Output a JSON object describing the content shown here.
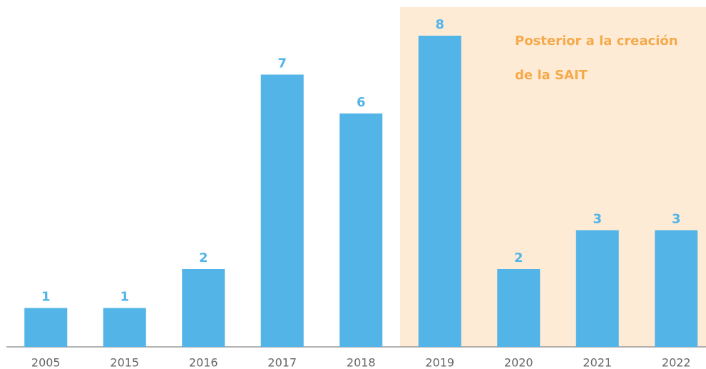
{
  "chart_data": {
    "type": "bar",
    "categories": [
      "2005",
      "2015",
      "2016",
      "2017",
      "2018",
      "2019",
      "2020",
      "2021",
      "2022"
    ],
    "values": [
      1,
      1,
      2,
      7,
      6,
      8,
      2,
      3,
      3
    ],
    "color": "#52b4e7",
    "annotation": [
      "Posterior a la creación",
      "de la SAIT"
    ]
  }
}
